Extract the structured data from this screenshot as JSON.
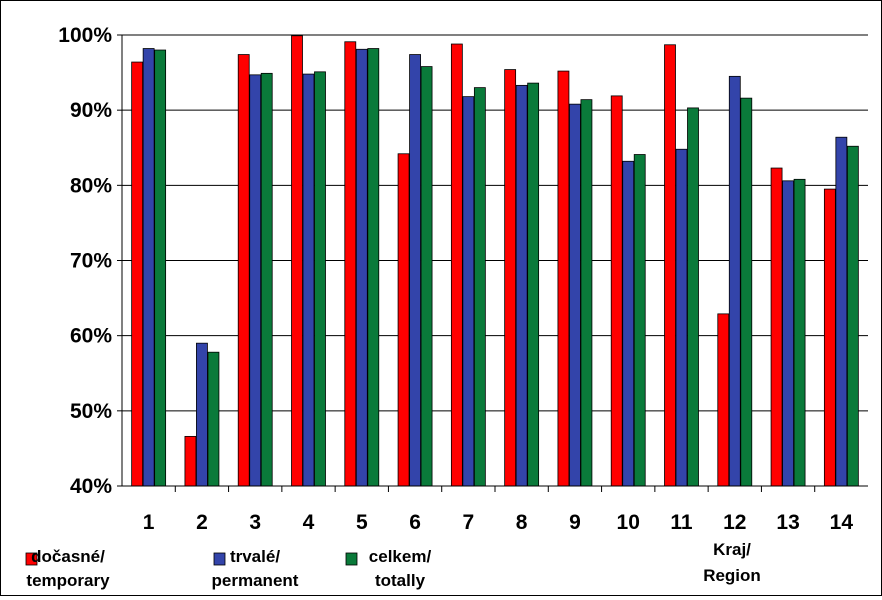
{
  "chart_data": {
    "type": "bar",
    "categories": [
      "1",
      "2",
      "3",
      "4",
      "5",
      "6",
      "7",
      "8",
      "9",
      "10",
      "11",
      "12",
      "13",
      "14"
    ],
    "series": [
      {
        "name": "dočasné/ temporary",
        "color": "#ff0000",
        "values": [
          96.4,
          46.6,
          97.4,
          99.9,
          99.1,
          84.2,
          98.8,
          95.4,
          95.2,
          91.9,
          98.7,
          62.9,
          82.3,
          79.5
        ]
      },
      {
        "name": "trvalé/ permanent",
        "color": "#3344aa",
        "values": [
          98.2,
          59.0,
          94.7,
          94.8,
          98.1,
          97.4,
          91.8,
          93.3,
          90.8,
          83.2,
          84.8,
          94.5,
          80.6,
          86.4
        ]
      },
      {
        "name": "celkem/ totally",
        "color": "#0a7a3a",
        "values": [
          98.0,
          57.8,
          94.9,
          95.1,
          98.2,
          95.8,
          93.0,
          93.6,
          91.4,
          84.1,
          90.3,
          91.6,
          80.8,
          85.2
        ]
      }
    ],
    "legend": [
      {
        "line1": "dočasné/",
        "line2": "temporary",
        "color": "#ff0000"
      },
      {
        "line1": "trvalé/",
        "line2": "permanent",
        "color": "#3344aa"
      },
      {
        "line1": "celkem/",
        "line2": "totally",
        "color": "#0a7a3a"
      }
    ],
    "xlabel": {
      "line1": "Kraj/",
      "line2": "Region"
    },
    "yticks": [
      "40%",
      "50%",
      "60%",
      "70%",
      "80%",
      "90%",
      "100%"
    ],
    "ylim": [
      40,
      100
    ],
    "ytick_values": [
      40,
      50,
      60,
      70,
      80,
      90,
      100
    ],
    "grid": true,
    "legend_position": "bottom-left"
  }
}
